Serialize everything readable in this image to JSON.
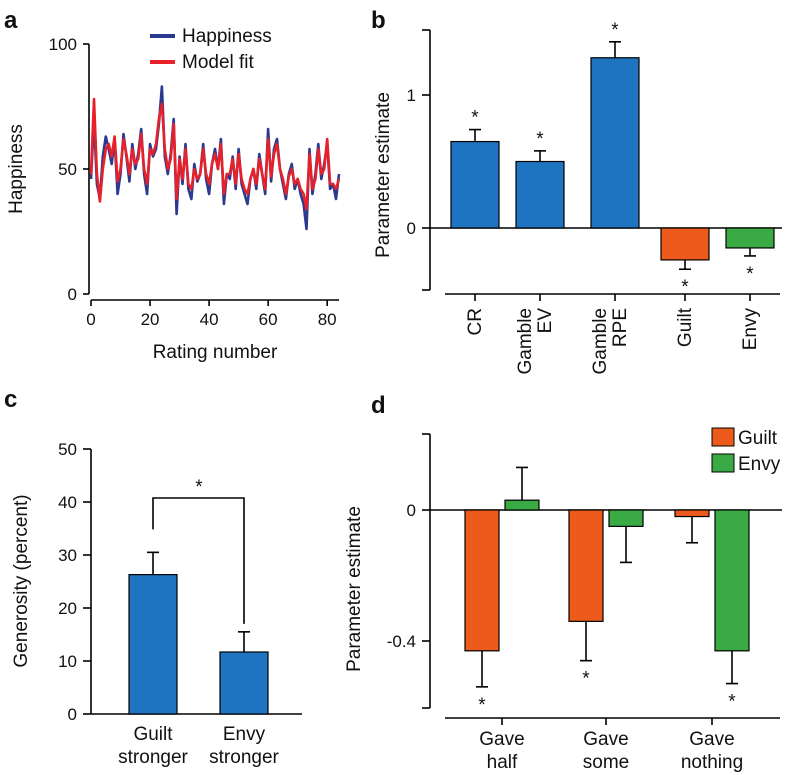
{
  "chart_data": [
    {
      "panel": "a",
      "type": "line",
      "xlabel": "Rating number",
      "ylabel": "Happiness",
      "xlim": [
        0,
        84
      ],
      "ylim": [
        0,
        100
      ],
      "xticks": [
        "0",
        "20",
        "40",
        "60",
        "80"
      ],
      "yticks": [
        "0",
        "50",
        "100"
      ],
      "legend": "top-right",
      "colors": {
        "Happiness": "#2b3a8f",
        "Model fit": "#e8202a"
      },
      "series": [
        {
          "name": "Happiness",
          "values": [
            46,
            70,
            44,
            38,
            55,
            63,
            58,
            52,
            62,
            40,
            48,
            64,
            55,
            45,
            60,
            50,
            56,
            66,
            48,
            40,
            60,
            55,
            58,
            68,
            83,
            55,
            48,
            56,
            70,
            32,
            55,
            44,
            60,
            42,
            38,
            52,
            45,
            48,
            60,
            46,
            40,
            52,
            58,
            50,
            62,
            36,
            48,
            46,
            55,
            42,
            58,
            44,
            40,
            36,
            46,
            50,
            42,
            56,
            48,
            40,
            66,
            45,
            58,
            62,
            50,
            44,
            38,
            48,
            52,
            42,
            46,
            40,
            36,
            26,
            58,
            40,
            48,
            60,
            46,
            52,
            60,
            42,
            44,
            38,
            48
          ]
        },
        {
          "name": "Model fit",
          "values": [
            48,
            78,
            48,
            37,
            50,
            58,
            60,
            55,
            63,
            45,
            50,
            62,
            56,
            48,
            58,
            52,
            54,
            64,
            50,
            44,
            58,
            56,
            60,
            70,
            76,
            58,
            50,
            54,
            68,
            38,
            54,
            46,
            58,
            44,
            42,
            50,
            46,
            48,
            58,
            48,
            44,
            52,
            56,
            50,
            60,
            40,
            48,
            48,
            54,
            44,
            56,
            46,
            42,
            40,
            46,
            50,
            44,
            54,
            48,
            42,
            62,
            47,
            56,
            60,
            50,
            46,
            40,
            47,
            50,
            44,
            46,
            42,
            40,
            34,
            56,
            42,
            46,
            58,
            48,
            50,
            62,
            44,
            44,
            42,
            46
          ]
        }
      ]
    },
    {
      "panel": "b",
      "type": "bar",
      "ylabel": "Parameter estimate",
      "ylim": [
        -0.5,
        1.5
      ],
      "yticks": [
        "0",
        "1"
      ],
      "categories": [
        [
          "CR"
        ],
        [
          "Gamble",
          "EV"
        ],
        [
          "Gamble",
          "RPE"
        ],
        [
          "Guilt"
        ],
        [
          "Envy"
        ]
      ],
      "values": [
        0.65,
        0.5,
        1.28,
        -0.24,
        -0.15
      ],
      "errors": [
        0.09,
        0.08,
        0.12,
        0.07,
        0.06
      ],
      "colors": [
        "#1e74c0",
        "#1e74c0",
        "#1e74c0",
        "#ec5a1c",
        "#3aab44"
      ],
      "significance": [
        "*",
        "*",
        "*",
        "*",
        "*"
      ]
    },
    {
      "panel": "c",
      "type": "bar",
      "ylabel": "Generosity (percent)",
      "ylim": [
        0,
        50
      ],
      "yticks": [
        "0",
        "10",
        "20",
        "30",
        "40",
        "50"
      ],
      "categories": [
        [
          "Guilt",
          "stronger"
        ],
        [
          "Envy",
          "stronger"
        ]
      ],
      "values": [
        26.3,
        11.7
      ],
      "errors": [
        4.2,
        3.8
      ],
      "colors": [
        "#1e74c0",
        "#1e74c0"
      ],
      "comparison": "*"
    },
    {
      "panel": "d",
      "type": "bar",
      "ylabel": "Parameter estimate",
      "ylim": [
        -0.6,
        0.22
      ],
      "yticks": [
        "0",
        "-0.4"
      ],
      "legend": "top-right",
      "categories": [
        [
          "Gave",
          "half"
        ],
        [
          "Gave",
          "some"
        ],
        [
          "Gave",
          "nothing"
        ]
      ],
      "series": [
        {
          "name": "Guilt",
          "color": "#ec5a1c",
          "values": [
            -0.43,
            -0.34,
            -0.02
          ],
          "errors": [
            0.11,
            0.12,
            0.08
          ],
          "significance": [
            "*",
            "*",
            ""
          ]
        },
        {
          "name": "Envy",
          "color": "#3aab44",
          "values": [
            0.03,
            -0.05,
            -0.43
          ],
          "errors": [
            0.1,
            0.11,
            0.1
          ],
          "significance": [
            "",
            "",
            "*"
          ]
        }
      ]
    }
  ]
}
